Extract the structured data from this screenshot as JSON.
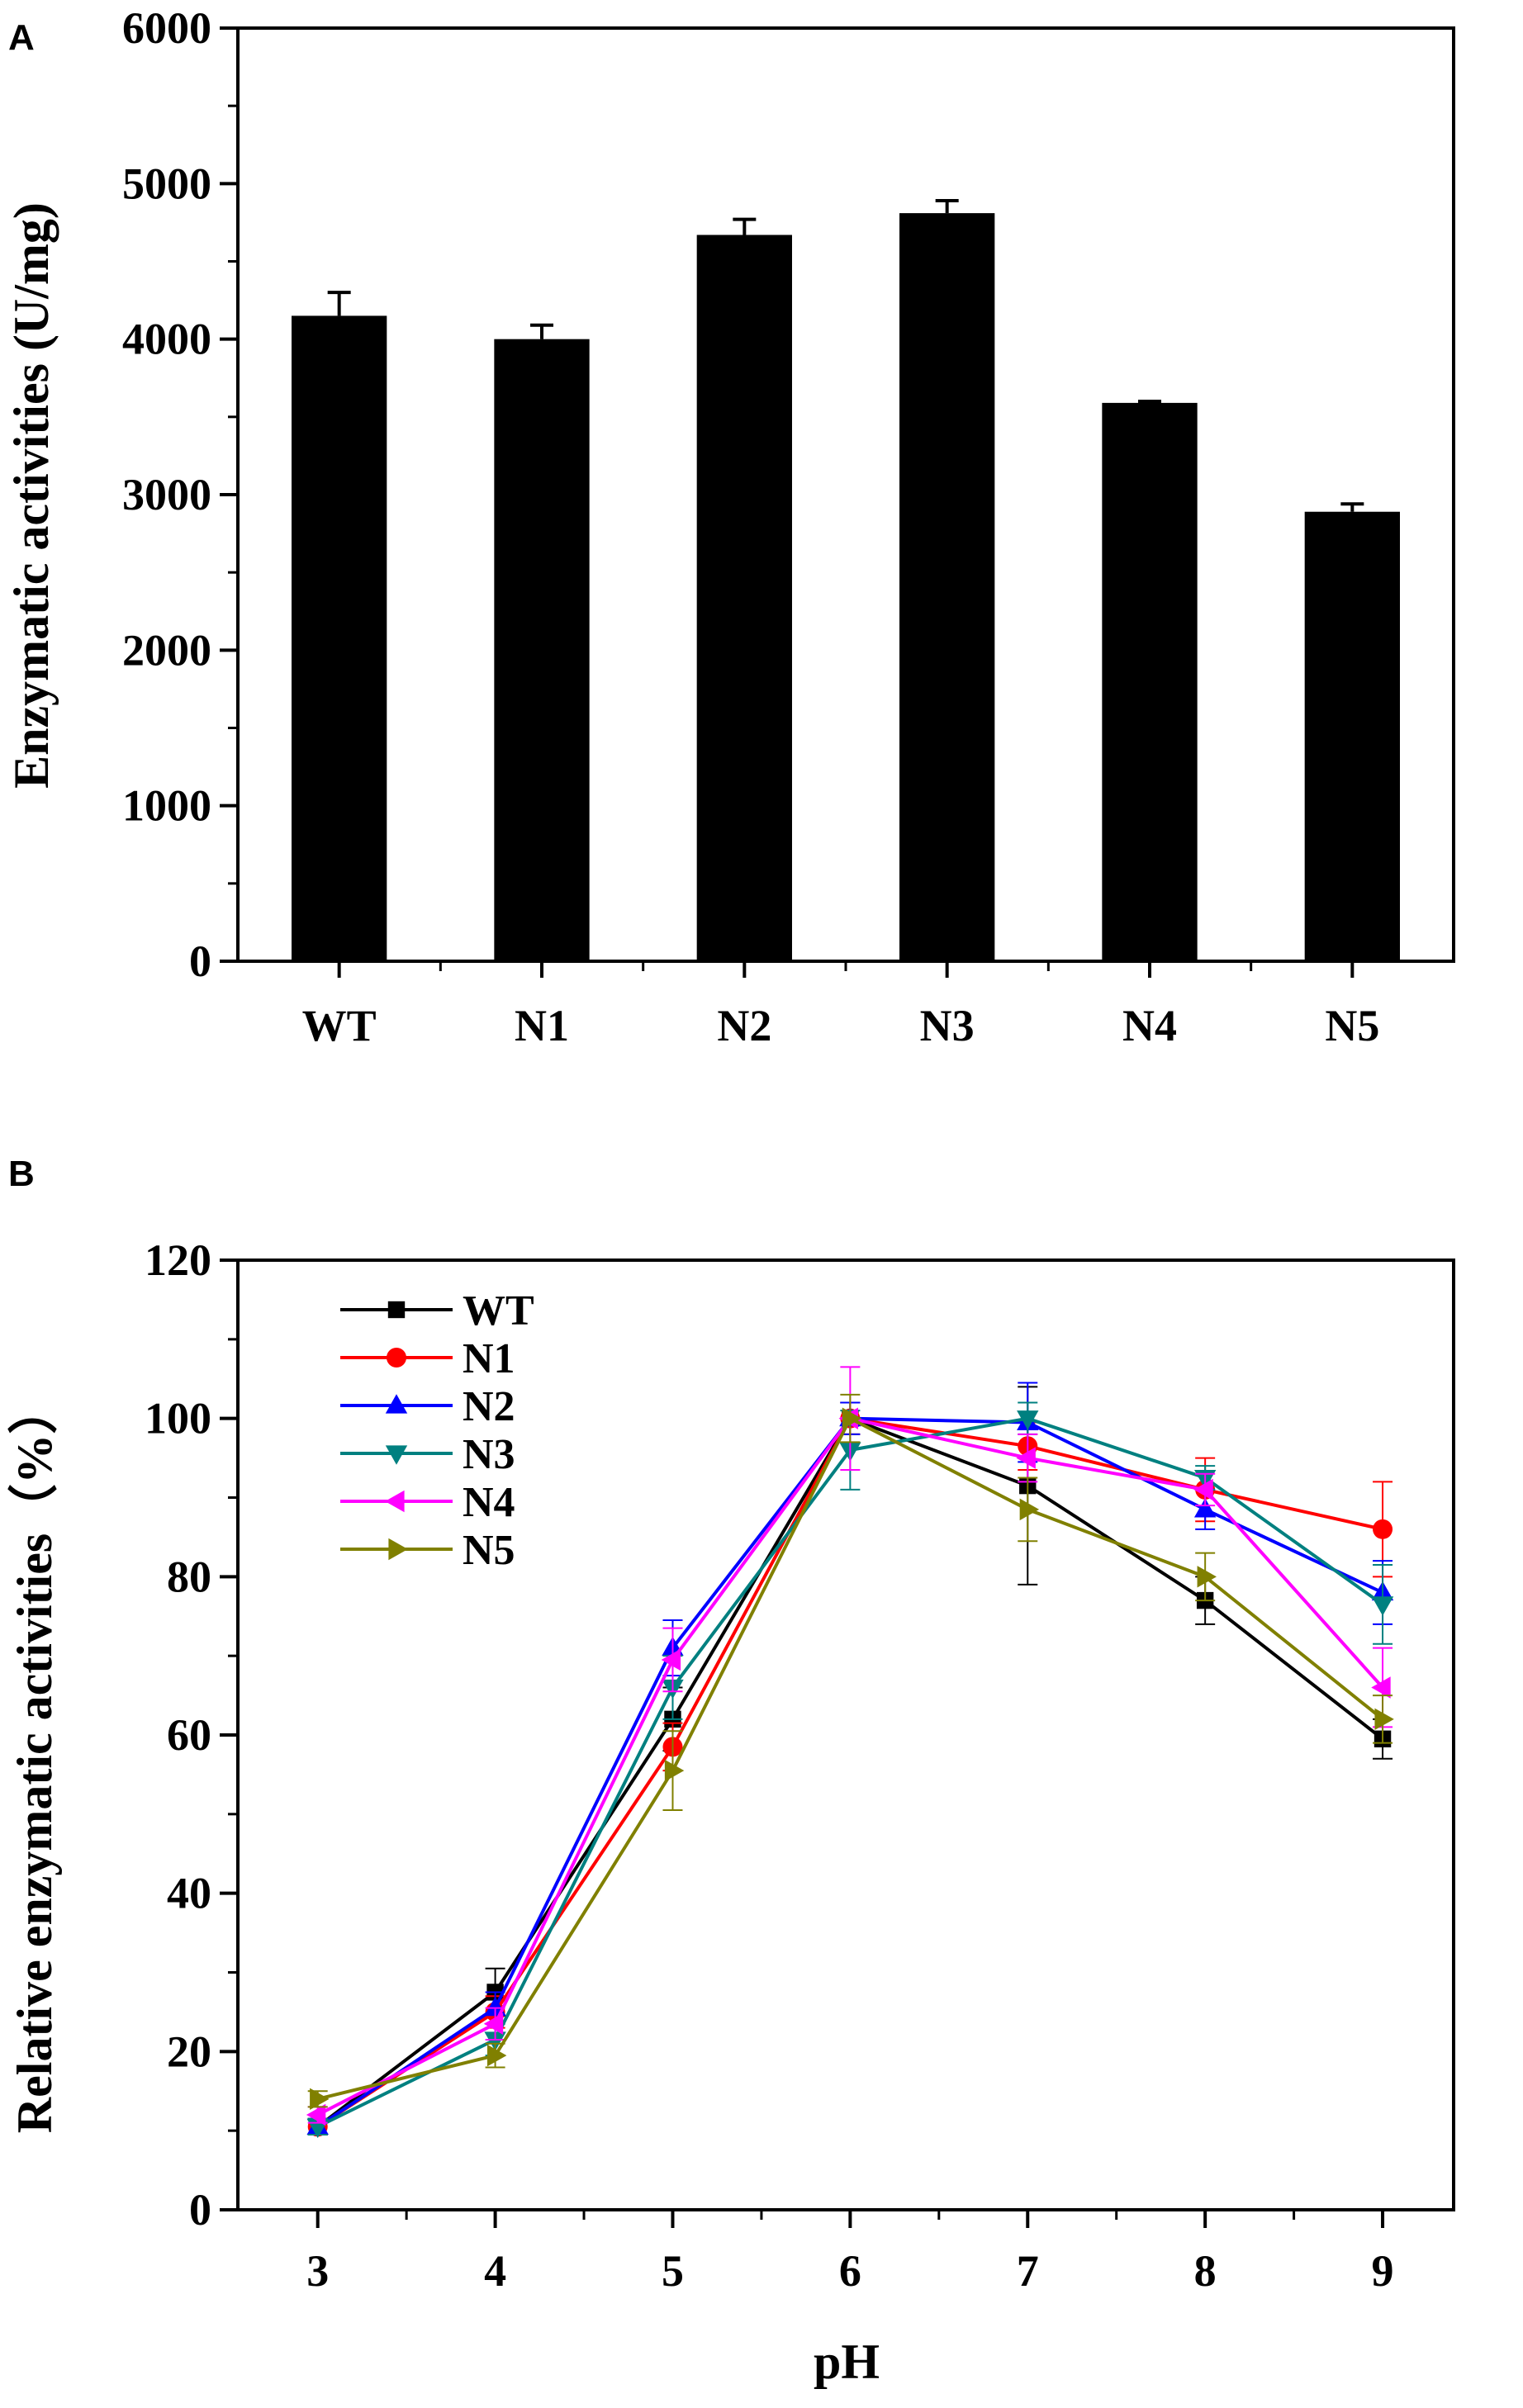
{
  "chart_data": [
    {
      "type": "bar",
      "panel_label": "A",
      "title": "",
      "xlabel": "",
      "ylabel": "Enzymatic activities (U/mg)",
      "categories": [
        "WT",
        "N1",
        "N2",
        "N3",
        "N4",
        "N5"
      ],
      "values": [
        4150,
        4000,
        4670,
        4810,
        3590,
        2890
      ],
      "errors": [
        150,
        90,
        100,
        80,
        10,
        50
      ],
      "ylim": [
        0,
        6000
      ],
      "yticks": [
        "0",
        "1000",
        "2000",
        "3000",
        "4000",
        "5000",
        "6000"
      ],
      "bar_color": "#000000",
      "grid": false,
      "legend": "none"
    },
    {
      "type": "line",
      "panel_label": "B",
      "title": "",
      "xlabel": "pH",
      "ylabel": "Relative enzymatic activities（%）",
      "x": [
        3,
        4,
        5,
        6,
        7,
        8,
        9
      ],
      "xticks": [
        "3",
        "4",
        "5",
        "6",
        "7",
        "8",
        "9"
      ],
      "xlim": [
        2.55,
        9.4
      ],
      "ylim": [
        0,
        120
      ],
      "yticks": [
        "0",
        "20",
        "40",
        "60",
        "80",
        "100",
        "120"
      ],
      "grid": false,
      "legend": "top-left",
      "series": [
        {
          "name": "WT",
          "color": "#000000",
          "marker": "square",
          "values": [
            10.5,
            27.5,
            62,
            100,
            91.5,
            77,
            59.5
          ],
          "errors": [
            1,
            3,
            4,
            2,
            12.5,
            3,
            2.5
          ]
        },
        {
          "name": "N1",
          "color": "#ff0000",
          "marker": "circle",
          "values": [
            10.5,
            25,
            58.5,
            100,
            96.5,
            91,
            86
          ],
          "errors": [
            1,
            2,
            3,
            2,
            3,
            4,
            6
          ]
        },
        {
          "name": "N2",
          "color": "#0000ff",
          "marker": "triangle-up",
          "values": [
            10.5,
            25.5,
            71,
            100,
            99.5,
            88.5,
            78
          ],
          "errors": [
            1,
            2,
            3.5,
            2,
            5,
            2.5,
            4
          ]
        },
        {
          "name": "N3",
          "color": "#008080",
          "marker": "triangle-down",
          "values": [
            10.5,
            21.5,
            66,
            96,
            100,
            92.5,
            76.5
          ],
          "errors": [
            1,
            2,
            4,
            5,
            2,
            1.5,
            5
          ]
        },
        {
          "name": "N4",
          "color": "#ff00ff",
          "marker": "triangle-left",
          "values": [
            12,
            23.5,
            69.5,
            100,
            95,
            91,
            66
          ],
          "errors": [
            1,
            2,
            4,
            6.5,
            3,
            2,
            5
          ]
        },
        {
          "name": "N5",
          "color": "#808000",
          "marker": "triangle-right",
          "values": [
            14,
            19.5,
            55.5,
            100,
            88.5,
            80,
            62
          ],
          "errors": [
            1,
            1.5,
            5,
            3,
            4,
            3,
            3
          ]
        }
      ]
    }
  ]
}
